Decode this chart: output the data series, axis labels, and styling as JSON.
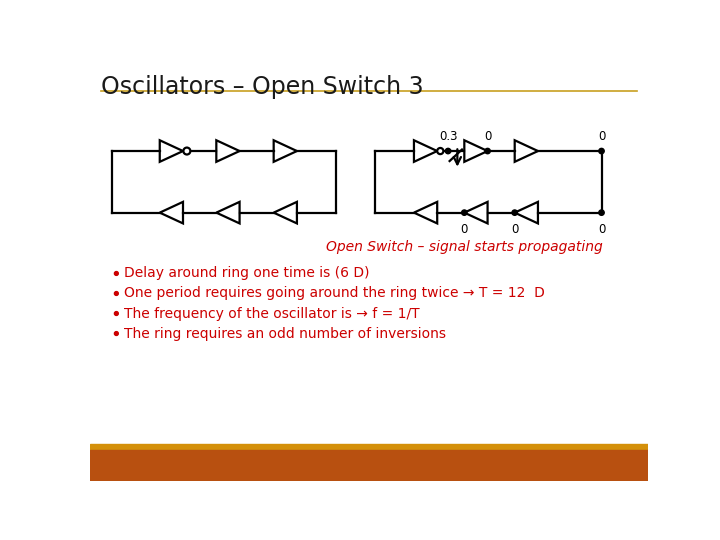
{
  "title": "Oscillators – Open Switch 3",
  "title_color": "#1a1a1a",
  "title_fontsize": 17,
  "subtitle_color": "#cc0000",
  "subtitle_text": "Open Switch – signal starts propagating",
  "bg_color": "#ffffff",
  "footer_color_top": "#d4900a",
  "footer_color_bottom": "#b85010",
  "bullet_color": "#cc0000",
  "bullet_points": [
    "Delay around ring one time is (6 D)",
    "One period requires going around the ring twice → T = 12  D",
    "The frequency of the oscillator is → f = 1/T",
    "The ring requires an odd number of inversions"
  ],
  "line_color": "#000000",
  "lw": 1.6,
  "title_underline_color": "#c8a020",
  "node_labels_top": [
    "0.3",
    "0",
    "0"
  ],
  "node_labels_bot": [
    "0",
    "0",
    "0"
  ]
}
